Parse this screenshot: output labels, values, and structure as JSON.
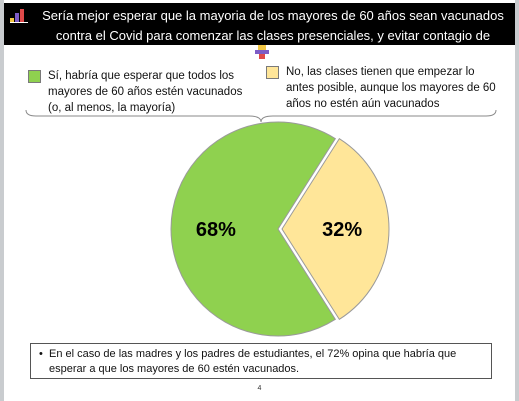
{
  "header": {
    "title": "Sería mejor esperar que la mayoria de los mayores de 60 años sean vacunados contra el Covid para comenzar las clases presenciales, y evitar contagio de abuelos y abuelas",
    "icon": "bar-chart-icon"
  },
  "legend": {
    "items": [
      {
        "label": "Sí, habría que esperar que todos los mayores de 60 años estén vacunados (o, al menos, la mayoría)",
        "color": "#8fd14f"
      },
      {
        "label": "No, las clases tienen que empezar lo antes posible, aunque los mayores de 60 años no estén aún vacunados",
        "color": "#ffe699"
      }
    ]
  },
  "chart_data": {
    "type": "pie",
    "categories": [
      "Sí, habría que esperar que todos los mayores de 60 años estén vacunados (o, al menos, la mayoría)",
      "No, las clases tienen que empezar lo antes posible, aunque los mayores de 60 años no estén aún vacunados"
    ],
    "values": [
      68,
      32
    ],
    "labels": [
      "68%",
      "32%"
    ],
    "colors": [
      "#8fd14f",
      "#ffe699"
    ]
  },
  "note": {
    "bullet": "•",
    "text": "En el caso de las madres y los padres de estudiantes, el 72% opina que habría que esperar a que los mayores de 60 estén vacunados."
  },
  "page_number": "4"
}
